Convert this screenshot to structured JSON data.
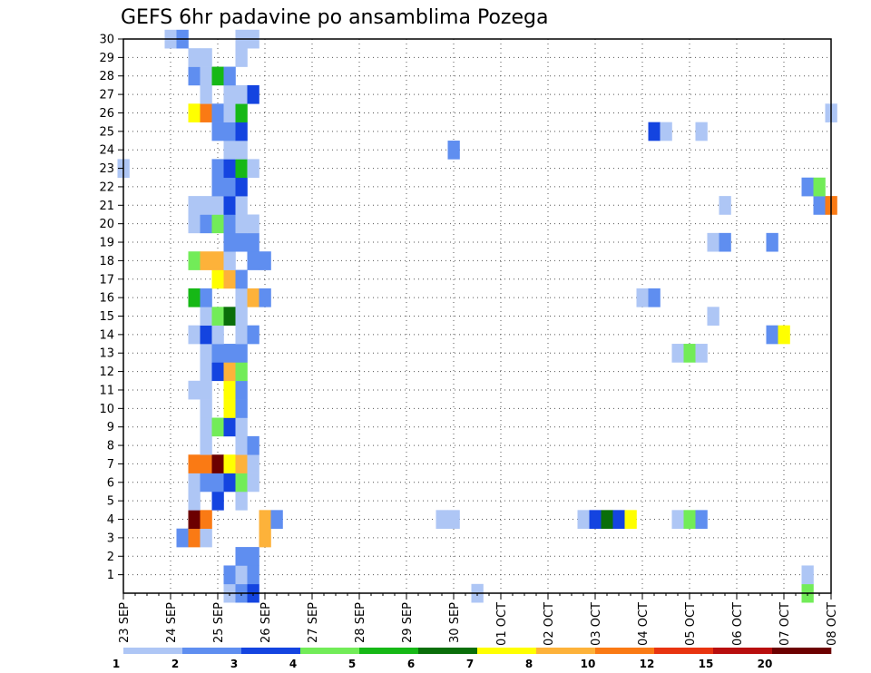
{
  "chart_data": {
    "type": "heatmap",
    "title": "GEFS 6hr padavine po ansamblima Pozega",
    "x_tick_labels": [
      "23 SEP",
      "24 SEP",
      "25 SEP",
      "26 SEP",
      "27 SEP",
      "28 SEP",
      "29 SEP",
      "30 SEP",
      "01 OCT",
      "02 OCT",
      "03 OCT",
      "04 OCT",
      "05 OCT",
      "06 OCT",
      "07 OCT",
      "08 OCT"
    ],
    "x_range": [
      "23 SEP 00Z",
      "08 OCT 00Z"
    ],
    "x_step_hours": 6,
    "y_tick_labels": [
      "1",
      "2",
      "3",
      "4",
      "5",
      "6",
      "7",
      "8",
      "9",
      "10",
      "11",
      "12",
      "13",
      "14",
      "15",
      "16",
      "17",
      "18",
      "19",
      "20",
      "21",
      "22",
      "23",
      "24",
      "25",
      "26",
      "27",
      "28",
      "29",
      "30"
    ],
    "y_range": [
      0,
      30
    ],
    "grid": "dotted",
    "colorbar": {
      "position": "bottom",
      "labels": [
        "1",
        "2",
        "3",
        "4",
        "5",
        "6",
        "7",
        "8",
        "10",
        "12",
        "15",
        "20"
      ],
      "colors": [
        "#aec6f5",
        "#5f8ef0",
        "#1444e0",
        "#72ec58",
        "#16b816",
        "#0a6e0a",
        "#ffff00",
        "#fdb23a",
        "#fa7a14",
        "#e83410",
        "#b80e0e",
        "#6c0000"
      ]
    },
    "cells": [
      {
        "member": 0,
        "time": "25 SEP 06Z",
        "value": 1.5
      },
      {
        "member": 0,
        "time": "25 SEP 12Z",
        "value": 2.5
      },
      {
        "member": 0,
        "time": "25 SEP 18Z",
        "value": 3.5
      },
      {
        "member": 0,
        "time": "30 SEP 12Z",
        "value": 1.5
      },
      {
        "member": 0,
        "time": "07 OCT 12Z",
        "value": 4.5
      },
      {
        "member": 1,
        "time": "25 SEP 06Z",
        "value": 2.5
      },
      {
        "member": 1,
        "time": "25 SEP 12Z",
        "value": 1.5
      },
      {
        "member": 1,
        "time": "25 SEP 18Z",
        "value": 2.5
      },
      {
        "member": 1,
        "time": "07 OCT 12Z",
        "value": 1.5
      },
      {
        "member": 2,
        "time": "25 SEP 12Z",
        "value": 2.5
      },
      {
        "member": 2,
        "time": "25 SEP 18Z",
        "value": 2.5
      },
      {
        "member": 3,
        "time": "24 SEP 06Z",
        "value": 2.5
      },
      {
        "member": 3,
        "time": "24 SEP 12Z",
        "value": 10.5
      },
      {
        "member": 3,
        "time": "24 SEP 18Z",
        "value": 1.5
      },
      {
        "member": 3,
        "time": "26 SEP 00Z",
        "value": 8.5
      },
      {
        "member": 4,
        "time": "24 SEP 12Z",
        "value": 25
      },
      {
        "member": 4,
        "time": "24 SEP 18Z",
        "value": 10.5
      },
      {
        "member": 4,
        "time": "26 SEP 00Z",
        "value": 8.5
      },
      {
        "member": 4,
        "time": "26 SEP 06Z",
        "value": 2.5
      },
      {
        "member": 4,
        "time": "29 SEP 18Z",
        "value": 1.5
      },
      {
        "member": 4,
        "time": "30 SEP 00Z",
        "value": 1.5
      },
      {
        "member": 4,
        "time": "02 OCT 18Z",
        "value": 1.5
      },
      {
        "member": 4,
        "time": "03 OCT 00Z",
        "value": 3.5
      },
      {
        "member": 4,
        "time": "03 OCT 06Z",
        "value": 6.5
      },
      {
        "member": 4,
        "time": "03 OCT 12Z",
        "value": 3.5
      },
      {
        "member": 4,
        "time": "03 OCT 18Z",
        "value": 7.5
      },
      {
        "member": 4,
        "time": "04 OCT 18Z",
        "value": 1.5
      },
      {
        "member": 4,
        "time": "05 OCT 00Z",
        "value": 4.5
      },
      {
        "member": 4,
        "time": "05 OCT 06Z",
        "value": 2.5
      },
      {
        "member": 5,
        "time": "24 SEP 12Z",
        "value": 1.5
      },
      {
        "member": 5,
        "time": "25 SEP 00Z",
        "value": 3.5
      },
      {
        "member": 5,
        "time": "25 SEP 12Z",
        "value": 1.5
      },
      {
        "member": 6,
        "time": "24 SEP 12Z",
        "value": 1.5
      },
      {
        "member": 6,
        "time": "24 SEP 18Z",
        "value": 2.5
      },
      {
        "member": 6,
        "time": "25 SEP 00Z",
        "value": 2.5
      },
      {
        "member": 6,
        "time": "25 SEP 06Z",
        "value": 3.5
      },
      {
        "member": 6,
        "time": "25 SEP 12Z",
        "value": 4.5
      },
      {
        "member": 6,
        "time": "25 SEP 18Z",
        "value": 1.5
      },
      {
        "member": 7,
        "time": "24 SEP 12Z",
        "value": 11
      },
      {
        "member": 7,
        "time": "24 SEP 18Z",
        "value": 11
      },
      {
        "member": 7,
        "time": "25 SEP 00Z",
        "value": 25
      },
      {
        "member": 7,
        "time": "25 SEP 06Z",
        "value": 7.5
      },
      {
        "member": 7,
        "time": "25 SEP 12Z",
        "value": 9
      },
      {
        "member": 7,
        "time": "25 SEP 18Z",
        "value": 1.5
      },
      {
        "member": 8,
        "time": "24 SEP 18Z",
        "value": 1.5
      },
      {
        "member": 8,
        "time": "25 SEP 12Z",
        "value": 1.5
      },
      {
        "member": 8,
        "time": "25 SEP 18Z",
        "value": 2.5
      },
      {
        "member": 9,
        "time": "24 SEP 18Z",
        "value": 1.5
      },
      {
        "member": 9,
        "time": "25 SEP 00Z",
        "value": 4.5
      },
      {
        "member": 9,
        "time": "25 SEP 06Z",
        "value": 3.5
      },
      {
        "member": 9,
        "time": "25 SEP 12Z",
        "value": 1.5
      },
      {
        "member": 10,
        "time": "24 SEP 18Z",
        "value": 1.5
      },
      {
        "member": 10,
        "time": "25 SEP 06Z",
        "value": 7.5
      },
      {
        "member": 10,
        "time": "25 SEP 12Z",
        "value": 2.5
      },
      {
        "member": 11,
        "time": "24 SEP 12Z",
        "value": 1.5
      },
      {
        "member": 11,
        "time": "24 SEP 18Z",
        "value": 1.5
      },
      {
        "member": 11,
        "time": "25 SEP 06Z",
        "value": 7.5
      },
      {
        "member": 11,
        "time": "25 SEP 12Z",
        "value": 2.5
      },
      {
        "member": 12,
        "time": "24 SEP 18Z",
        "value": 1.5
      },
      {
        "member": 12,
        "time": "25 SEP 00Z",
        "value": 3.5
      },
      {
        "member": 12,
        "time": "25 SEP 06Z",
        "value": 9
      },
      {
        "member": 12,
        "time": "25 SEP 12Z",
        "value": 4.5
      },
      {
        "member": 13,
        "time": "24 SEP 18Z",
        "value": 1.5
      },
      {
        "member": 13,
        "time": "25 SEP 00Z",
        "value": 2.5
      },
      {
        "member": 13,
        "time": "25 SEP 06Z",
        "value": 2.5
      },
      {
        "member": 13,
        "time": "25 SEP 12Z",
        "value": 2.5
      },
      {
        "member": 13,
        "time": "04 OCT 18Z",
        "value": 1.5
      },
      {
        "member": 13,
        "time": "05 OCT 00Z",
        "value": 4.5
      },
      {
        "member": 13,
        "time": "05 OCT 06Z",
        "value": 1.5
      },
      {
        "member": 14,
        "time": "24 SEP 12Z",
        "value": 1.5
      },
      {
        "member": 14,
        "time": "24 SEP 18Z",
        "value": 3.5
      },
      {
        "member": 14,
        "time": "25 SEP 00Z",
        "value": 1.5
      },
      {
        "member": 14,
        "time": "25 SEP 12Z",
        "value": 1.5
      },
      {
        "member": 14,
        "time": "25 SEP 18Z",
        "value": 2.5
      },
      {
        "member": 14,
        "time": "06 OCT 18Z",
        "value": 2.5
      },
      {
        "member": 14,
        "time": "07 OCT 00Z",
        "value": 7.5
      },
      {
        "member": 15,
        "time": "24 SEP 18Z",
        "value": 1.5
      },
      {
        "member": 15,
        "time": "25 SEP 00Z",
        "value": 4.5
      },
      {
        "member": 15,
        "time": "25 SEP 06Z",
        "value": 6.5
      },
      {
        "member": 15,
        "time": "25 SEP 12Z",
        "value": 1.5
      },
      {
        "member": 15,
        "time": "05 OCT 12Z",
        "value": 1.5
      },
      {
        "member": 16,
        "time": "24 SEP 12Z",
        "value": 5.5
      },
      {
        "member": 16,
        "time": "24 SEP 18Z",
        "value": 2.5
      },
      {
        "member": 16,
        "time": "25 SEP 12Z",
        "value": 1.5
      },
      {
        "member": 16,
        "time": "25 SEP 18Z",
        "value": 9
      },
      {
        "member": 16,
        "time": "26 SEP 00Z",
        "value": 2.5
      },
      {
        "member": 16,
        "time": "04 OCT 00Z",
        "value": 1.5
      },
      {
        "member": 16,
        "time": "04 OCT 06Z",
        "value": 2.5
      },
      {
        "member": 17,
        "time": "25 SEP 00Z",
        "value": 7.5
      },
      {
        "member": 17,
        "time": "25 SEP 06Z",
        "value": 9
      },
      {
        "member": 17,
        "time": "25 SEP 12Z",
        "value": 2.5
      },
      {
        "member": 18,
        "time": "24 SEP 12Z",
        "value": 4.5
      },
      {
        "member": 18,
        "time": "24 SEP 18Z",
        "value": 9
      },
      {
        "member": 18,
        "time": "25 SEP 00Z",
        "value": 9
      },
      {
        "member": 18,
        "time": "25 SEP 06Z",
        "value": 1.5
      },
      {
        "member": 18,
        "time": "25 SEP 18Z",
        "value": 2.5
      },
      {
        "member": 18,
        "time": "26 SEP 00Z",
        "value": 2.5
      },
      {
        "member": 19,
        "time": "25 SEP 06Z",
        "value": 2.5
      },
      {
        "member": 19,
        "time": "25 SEP 12Z",
        "value": 2.5
      },
      {
        "member": 19,
        "time": "25 SEP 18Z",
        "value": 2.5
      },
      {
        "member": 19,
        "time": "05 OCT 12Z",
        "value": 1.5
      },
      {
        "member": 19,
        "time": "05 OCT 18Z",
        "value": 2.5
      },
      {
        "member": 19,
        "time": "06 OCT 18Z",
        "value": 2.5
      },
      {
        "member": 20,
        "time": "24 SEP 12Z",
        "value": 1.5
      },
      {
        "member": 20,
        "time": "24 SEP 18Z",
        "value": 2.5
      },
      {
        "member": 20,
        "time": "25 SEP 00Z",
        "value": 4.5
      },
      {
        "member": 20,
        "time": "25 SEP 06Z",
        "value": 2.5
      },
      {
        "member": 20,
        "time": "25 SEP 12Z",
        "value": 1.5
      },
      {
        "member": 20,
        "time": "25 SEP 18Z",
        "value": 1.5
      },
      {
        "member": 21,
        "time": "24 SEP 12Z",
        "value": 1.5
      },
      {
        "member": 21,
        "time": "24 SEP 18Z",
        "value": 1.5
      },
      {
        "member": 21,
        "time": "25 SEP 00Z",
        "value": 1.5
      },
      {
        "member": 21,
        "time": "25 SEP 06Z",
        "value": 3.5
      },
      {
        "member": 21,
        "time": "25 SEP 12Z",
        "value": 1.5
      },
      {
        "member": 21,
        "time": "05 OCT 18Z",
        "value": 1.5
      },
      {
        "member": 21,
        "time": "07 OCT 18Z",
        "value": 2.5
      },
      {
        "member": 21,
        "time": "08 OCT 00Z",
        "value": 10.5
      },
      {
        "member": 22,
        "time": "25 SEP 00Z",
        "value": 2.5
      },
      {
        "member": 22,
        "time": "25 SEP 06Z",
        "value": 2.5
      },
      {
        "member": 22,
        "time": "25 SEP 12Z",
        "value": 3.5
      },
      {
        "member": 22,
        "time": "07 OCT 12Z",
        "value": 2.5
      },
      {
        "member": 22,
        "time": "07 OCT 18Z",
        "value": 4.5
      },
      {
        "member": 23,
        "time": "23 SEP 00Z",
        "value": 1.5
      },
      {
        "member": 23,
        "time": "25 SEP 00Z",
        "value": 2.5
      },
      {
        "member": 23,
        "time": "25 SEP 06Z",
        "value": 3.5
      },
      {
        "member": 23,
        "time": "25 SEP 12Z",
        "value": 5.5
      },
      {
        "member": 23,
        "time": "25 SEP 18Z",
        "value": 1.5
      },
      {
        "member": 24,
        "time": "25 SEP 06Z",
        "value": 1.5
      },
      {
        "member": 24,
        "time": "25 SEP 12Z",
        "value": 1.5
      },
      {
        "member": 24,
        "time": "30 SEP 00Z",
        "value": 2.5
      },
      {
        "member": 25,
        "time": "25 SEP 00Z",
        "value": 2.5
      },
      {
        "member": 25,
        "time": "25 SEP 06Z",
        "value": 2.5
      },
      {
        "member": 25,
        "time": "25 SEP 12Z",
        "value": 3.5
      },
      {
        "member": 25,
        "time": "04 OCT 06Z",
        "value": 3.5
      },
      {
        "member": 25,
        "time": "04 OCT 12Z",
        "value": 1.5
      },
      {
        "member": 25,
        "time": "05 OCT 06Z",
        "value": 1.5
      },
      {
        "member": 26,
        "time": "24 SEP 12Z",
        "value": 7.5
      },
      {
        "member": 26,
        "time": "24 SEP 18Z",
        "value": 10.5
      },
      {
        "member": 26,
        "time": "25 SEP 00Z",
        "value": 2.5
      },
      {
        "member": 26,
        "time": "25 SEP 06Z",
        "value": 1.5
      },
      {
        "member": 26,
        "time": "25 SEP 12Z",
        "value": 5.5
      },
      {
        "member": 26,
        "time": "08 OCT 00Z",
        "value": 1.5
      },
      {
        "member": 27,
        "time": "24 SEP 18Z",
        "value": 1.5
      },
      {
        "member": 27,
        "time": "25 SEP 06Z",
        "value": 1.5
      },
      {
        "member": 27,
        "time": "25 SEP 12Z",
        "value": 1.5
      },
      {
        "member": 27,
        "time": "25 SEP 18Z",
        "value": 3.5
      },
      {
        "member": 28,
        "time": "24 SEP 12Z",
        "value": 2.5
      },
      {
        "member": 28,
        "time": "24 SEP 18Z",
        "value": 1.5
      },
      {
        "member": 28,
        "time": "25 SEP 00Z",
        "value": 5.5
      },
      {
        "member": 28,
        "time": "25 SEP 06Z",
        "value": 2.5
      },
      {
        "member": 29,
        "time": "24 SEP 12Z",
        "value": 1.5
      },
      {
        "member": 29,
        "time": "24 SEP 18Z",
        "value": 1.5
      },
      {
        "member": 29,
        "time": "25 SEP 12Z",
        "value": 1.5
      },
      {
        "member": 30,
        "time": "24 SEP 00Z",
        "value": 1.5
      },
      {
        "member": 30,
        "time": "24 SEP 06Z",
        "value": 2.5
      },
      {
        "member": 30,
        "time": "25 SEP 12Z",
        "value": 1.5
      },
      {
        "member": 30,
        "time": "25 SEP 18Z",
        "value": 1.5
      }
    ]
  }
}
